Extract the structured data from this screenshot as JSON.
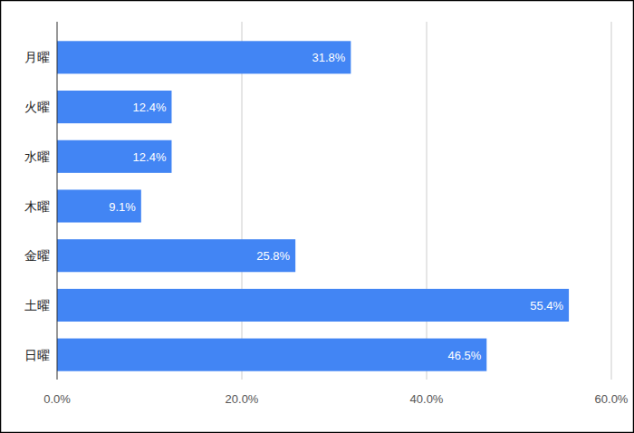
{
  "chart_data": {
    "type": "bar",
    "orientation": "horizontal",
    "categories": [
      "月曜",
      "火曜",
      "水曜",
      "木曜",
      "金曜",
      "土曜",
      "日曜"
    ],
    "values": [
      31.8,
      12.4,
      12.4,
      9.1,
      25.8,
      55.4,
      46.5
    ],
    "value_labels": [
      "31.8%",
      "12.4%",
      "12.4%",
      "9.1%",
      "25.8%",
      "55.4%",
      "46.5%"
    ],
    "data_labels": true,
    "color": "#4285f4",
    "xlim": [
      0,
      60
    ],
    "xticks": [
      {
        "value": 0,
        "label": "0.0%"
      },
      {
        "value": 20,
        "label": "20.0%"
      },
      {
        "value": 40,
        "label": "40.0%"
      },
      {
        "value": 60,
        "label": "60.0%"
      }
    ],
    "grid": true
  }
}
